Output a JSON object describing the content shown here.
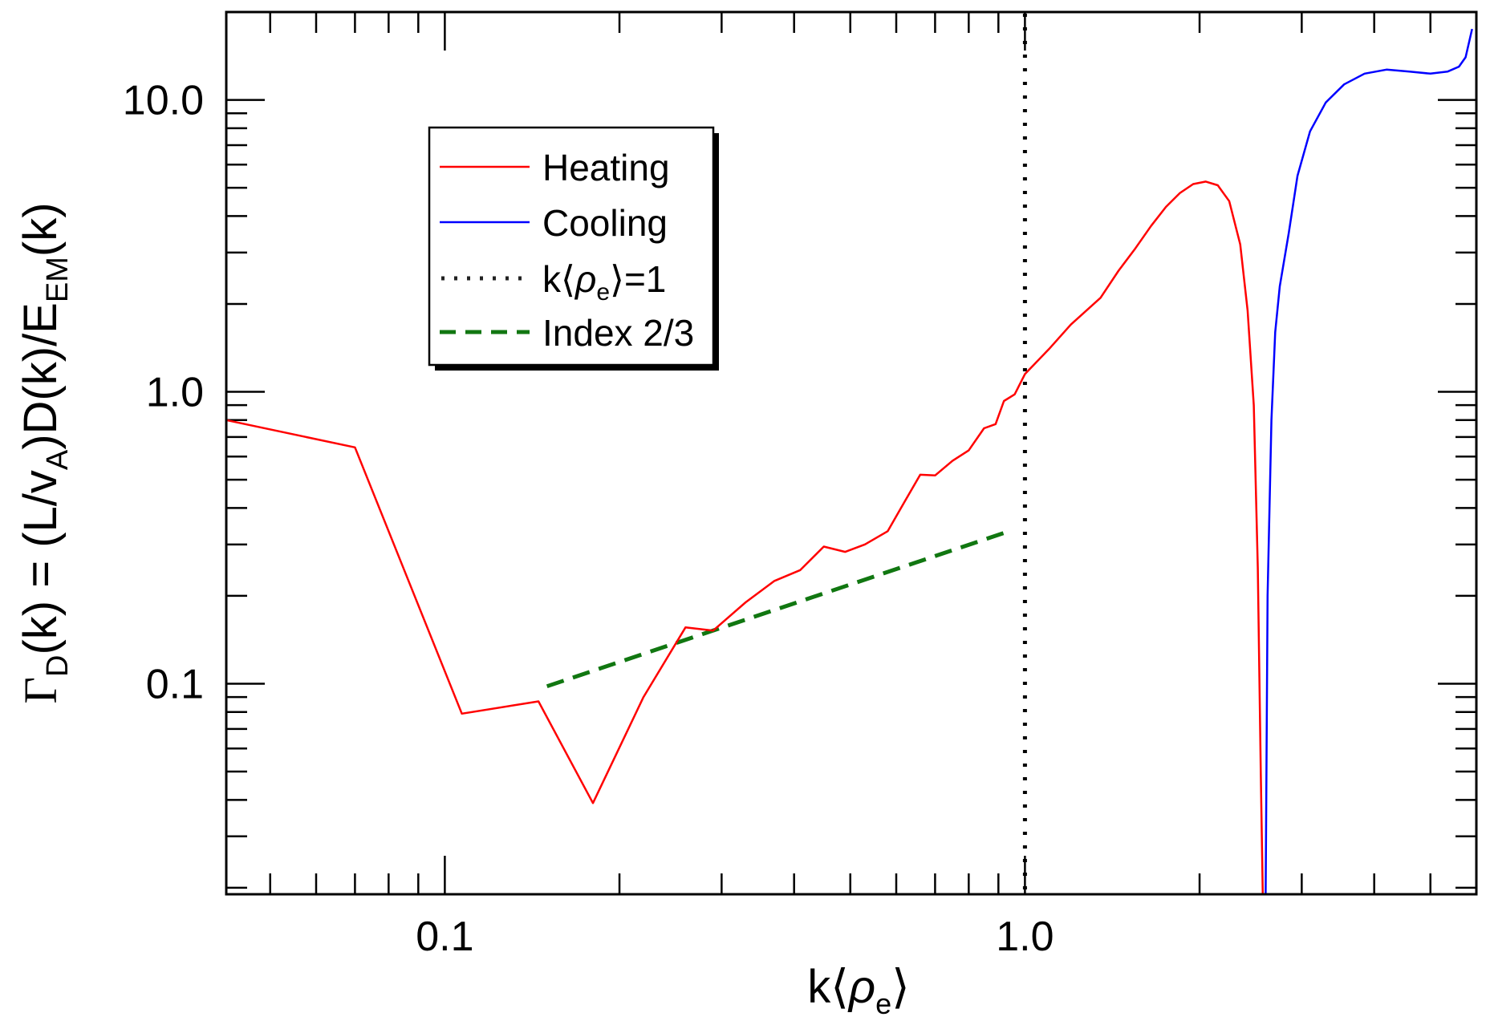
{
  "chart_data": {
    "type": "line",
    "xscale": "log",
    "yscale": "log",
    "xlim": [
      0.042,
      6.0
    ],
    "ylim": [
      0.019,
      20.0
    ],
    "xlabel": {
      "base": "k",
      "open": "⟨",
      "symbol": "ρ",
      "sub": "e",
      "close": "⟩"
    },
    "ylabel": {
      "gamma": "Γ",
      "gamma_sub": "D",
      "part1": "(k) = (L/v",
      "v_sub": "A",
      "part2": ")D(k)/E",
      "e_sub": "EM",
      "part3": "(k)"
    },
    "x_ticks": [
      {
        "value": 0.1,
        "label": "0.1"
      },
      {
        "value": 1.0,
        "label": "1.0"
      }
    ],
    "y_ticks": [
      {
        "value": 0.1,
        "label": "0.1"
      },
      {
        "value": 1.0,
        "label": "1.0"
      },
      {
        "value": 10.0,
        "label": "10.0"
      }
    ],
    "legend": {
      "position": "top-left",
      "entries": [
        {
          "label": "Heating",
          "style": "solid",
          "color": "#ff0000"
        },
        {
          "label": "Cooling",
          "style": "solid",
          "color": "#0000ff"
        },
        {
          "label_parts": {
            "base": "k",
            "open": "⟨",
            "symbol": "ρ",
            "sub": "e",
            "close": "⟩=1"
          },
          "style": "dotted",
          "color": "#000000"
        },
        {
          "label": "Index 2/3",
          "style": "dashed",
          "color": "#117711"
        }
      ]
    },
    "series": [
      {
        "name": "Heating",
        "color": "#ff0000",
        "points": [
          [
            0.042,
            0.8
          ],
          [
            0.07,
            0.645
          ],
          [
            0.107,
            0.079
          ],
          [
            0.145,
            0.087
          ],
          [
            0.18,
            0.039
          ],
          [
            0.22,
            0.09
          ],
          [
            0.26,
            0.156
          ],
          [
            0.29,
            0.152
          ],
          [
            0.33,
            0.19
          ],
          [
            0.37,
            0.225
          ],
          [
            0.41,
            0.245
          ],
          [
            0.45,
            0.295
          ],
          [
            0.49,
            0.283
          ],
          [
            0.53,
            0.3
          ],
          [
            0.58,
            0.333
          ],
          [
            0.62,
            0.42
          ],
          [
            0.66,
            0.52
          ],
          [
            0.7,
            0.517
          ],
          [
            0.75,
            0.58
          ],
          [
            0.8,
            0.63
          ],
          [
            0.85,
            0.75
          ],
          [
            0.89,
            0.775
          ],
          [
            0.92,
            0.93
          ],
          [
            0.96,
            0.98
          ],
          [
            1.0,
            1.15
          ],
          [
            1.1,
            1.4
          ],
          [
            1.2,
            1.7
          ],
          [
            1.35,
            2.1
          ],
          [
            1.45,
            2.6
          ],
          [
            1.55,
            3.1
          ],
          [
            1.65,
            3.7
          ],
          [
            1.75,
            4.3
          ],
          [
            1.85,
            4.8
          ],
          [
            1.95,
            5.15
          ],
          [
            2.05,
            5.25
          ],
          [
            2.15,
            5.1
          ],
          [
            2.25,
            4.5
          ],
          [
            2.35,
            3.2
          ],
          [
            2.42,
            1.9
          ],
          [
            2.48,
            0.9
          ],
          [
            2.52,
            0.25
          ],
          [
            2.55,
            0.05
          ],
          [
            2.57,
            0.019
          ]
        ]
      },
      {
        "name": "Cooling",
        "color": "#0000ff",
        "points": [
          [
            2.6,
            0.019
          ],
          [
            2.62,
            0.2
          ],
          [
            2.66,
            0.8
          ],
          [
            2.7,
            1.6
          ],
          [
            2.75,
            2.3
          ],
          [
            2.85,
            3.5
          ],
          [
            2.95,
            5.5
          ],
          [
            3.1,
            7.8
          ],
          [
            3.3,
            9.8
          ],
          [
            3.55,
            11.3
          ],
          [
            3.85,
            12.3
          ],
          [
            4.2,
            12.7
          ],
          [
            4.6,
            12.5
          ],
          [
            5.0,
            12.3
          ],
          [
            5.35,
            12.5
          ],
          [
            5.6,
            13.0
          ],
          [
            5.75,
            14.0
          ],
          [
            5.9,
            17.5
          ]
        ]
      }
    ],
    "reference_lines": [
      {
        "name": "k⟨ρe⟩=1",
        "type": "vertical",
        "x": 1.0,
        "style": "dotted",
        "color": "#000000"
      },
      {
        "name": "Index 2/3",
        "type": "powerlaw",
        "x_range": [
          0.15,
          0.95
        ],
        "y_at_start": 0.098,
        "slope": 0.6667,
        "style": "dashed",
        "color": "#117711"
      }
    ]
  }
}
